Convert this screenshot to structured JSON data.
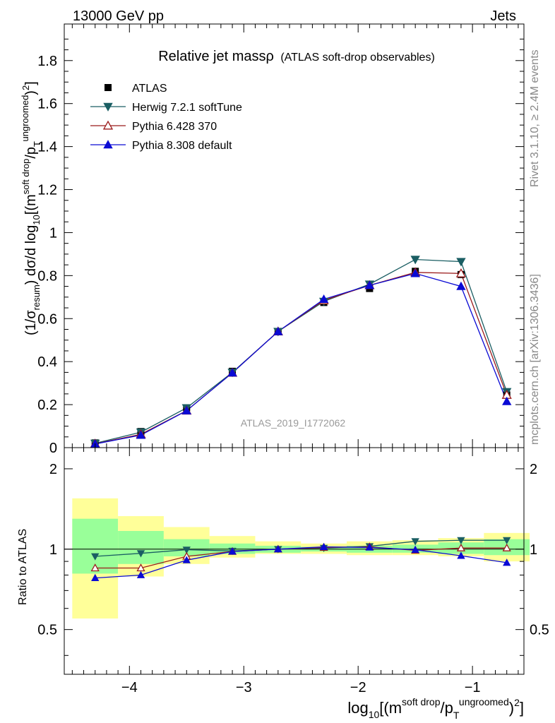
{
  "header": {
    "left": "13000 GeV pp",
    "right": "Jets"
  },
  "side_labels": {
    "rivet": "Rivet 3.1.10, ≥ 2.4M events",
    "mcplots": "mcplots.cern.ch [arXiv:1306.3436]"
  },
  "chart_data": {
    "type": "line",
    "title": "Relative jet massρ",
    "subtitle": "(ATLAS soft-drop observables)",
    "analysis_label": "ATLAS_2019_I1772062",
    "xlabel": "log10[(m^soft drop/pT^ungroomed)^2]",
    "ylabel": "(1/σresum) dσ/d log10[(m^soft drop/pT^ungroomed)^2]",
    "ratio_ylabel": "Ratio to ATLAS",
    "xlim": [
      -4.57,
      -0.55
    ],
    "ylim": [
      0,
      1.97
    ],
    "ratio_ylim": [
      0.34,
      2.4
    ],
    "xticks": [
      -4,
      -3,
      -2,
      -1
    ],
    "xtick_labels": [
      "−4",
      "−3",
      "−2",
      "−1"
    ],
    "yticks": [
      0,
      0.2,
      0.4,
      0.6,
      0.8,
      1,
      1.2,
      1.4,
      1.6,
      1.8
    ],
    "ytick_labels": [
      "0",
      "0.2",
      "0.4",
      "0.6",
      "0.8",
      "1",
      "1.2",
      "1.4",
      "1.6",
      "1.8"
    ],
    "ratio_yticks": [
      0.5,
      1,
      2
    ],
    "ratio_ytick_labels": [
      "0.5",
      "1",
      "2"
    ],
    "legend_position": "top-left",
    "x": [
      -4.3,
      -3.9,
      -3.5,
      -3.1,
      -2.7,
      -2.3,
      -1.9,
      -1.5,
      -1.1,
      -0.7
    ],
    "bin_edges": [
      -4.5,
      -4.1,
      -3.7,
      -3.3,
      -2.9,
      -2.5,
      -2.1,
      -1.7,
      -1.3,
      -0.9,
      -0.5
    ],
    "band_outer": [
      [
        0.55,
        1.55
      ],
      [
        0.79,
        1.33
      ],
      [
        0.88,
        1.21
      ],
      [
        0.93,
        1.12
      ],
      [
        0.96,
        1.07
      ],
      [
        0.96,
        1.05
      ],
      [
        0.95,
        1.07
      ],
      [
        0.95,
        1.08
      ],
      [
        0.94,
        1.1
      ],
      [
        0.9,
        1.15
      ]
    ],
    "band_inner": [
      [
        0.81,
        1.3
      ],
      [
        0.88,
        1.17
      ],
      [
        0.94,
        1.09
      ],
      [
        0.96,
        1.05
      ],
      [
        0.97,
        1.03
      ],
      [
        0.98,
        1.02
      ],
      [
        0.97,
        1.03
      ],
      [
        0.97,
        1.04
      ],
      [
        0.96,
        1.06
      ],
      [
        0.95,
        1.09
      ]
    ],
    "series": [
      {
        "name": "ATLAS",
        "color": "#000000",
        "marker": "square",
        "values": [
          0.022,
          0.075,
          0.185,
          0.355,
          0.54,
          0.675,
          0.74,
          0.82,
          0.805,
          0.245
        ]
      },
      {
        "name": "Herwig 7.2.1 softTune",
        "color": "#1a5e63",
        "marker": "triangle-down",
        "values": [
          0.02,
          0.072,
          0.185,
          0.35,
          0.54,
          0.68,
          0.76,
          0.875,
          0.865,
          0.26
        ],
        "ratio": [
          0.94,
          0.965,
          0.995,
          0.985,
          1.0,
          1.01,
          1.025,
          1.07,
          1.08,
          1.08
        ]
      },
      {
        "name": "Pythia 6.428 370",
        "color": "#9b1b1b",
        "marker": "triangle-up-open",
        "values": [
          0.018,
          0.062,
          0.172,
          0.348,
          0.54,
          0.685,
          0.755,
          0.815,
          0.81,
          0.245
        ],
        "ratio": [
          0.85,
          0.85,
          0.94,
          0.98,
          1.0,
          1.015,
          1.02,
          0.99,
          1.01,
          1.01
        ]
      },
      {
        "name": "Pythia 8.308 default",
        "color": "#0a0ad4",
        "marker": "triangle-up",
        "values": [
          0.017,
          0.058,
          0.172,
          0.348,
          0.54,
          0.69,
          0.755,
          0.81,
          0.75,
          0.215
        ],
        "ratio": [
          0.78,
          0.8,
          0.91,
          0.98,
          1.0,
          1.02,
          1.015,
          0.995,
          0.945,
          0.89
        ]
      }
    ]
  }
}
